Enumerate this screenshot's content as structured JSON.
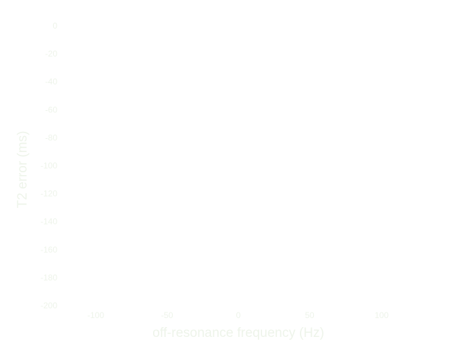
{
  "chart_data": {
    "type": "scatter",
    "title": "",
    "xlabel": "off-resonance frequency (Hz)",
    "ylabel": "T2 error (ms)",
    "x_ticks": [
      "-100",
      "-50",
      "0",
      "50",
      "100"
    ],
    "y_ticks": [
      "0",
      "-20",
      "-40",
      "-60",
      "-80",
      "-100",
      "-120",
      "-140",
      "-160",
      "-180",
      "-200"
    ],
    "xlim": [
      -100,
      100
    ],
    "ylim": [
      -200,
      0
    ],
    "grid": false,
    "series": []
  }
}
